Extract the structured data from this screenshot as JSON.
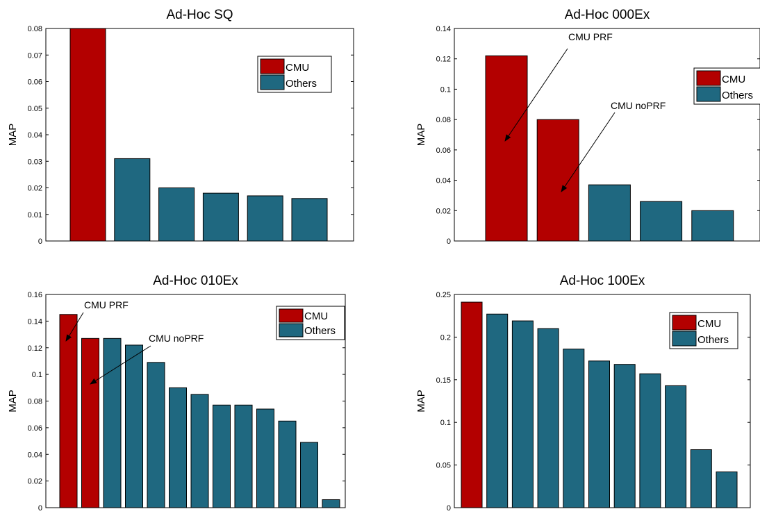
{
  "colors": {
    "cmu": "#b30000",
    "others": "#1f6880"
  },
  "chart_data": [
    {
      "type": "bar",
      "title": "Ad-Hoc SQ",
      "ylabel": "MAP",
      "ylim": [
        0,
        0.08
      ],
      "yticks": [
        "0",
        "0.01",
        "0.02",
        "0.03",
        "0.04",
        "0.05",
        "0.06",
        "0.07",
        "0.08"
      ],
      "series": [
        {
          "name": "CMU",
          "values": [
            0.08,
            null,
            null,
            null,
            null,
            null
          ]
        },
        {
          "name": "Others",
          "values": [
            null,
            0.031,
            0.02,
            0.018,
            0.017,
            0.016
          ]
        }
      ],
      "legend": {
        "position": "top-right",
        "labels": [
          "CMU",
          "Others"
        ]
      },
      "annotations": []
    },
    {
      "type": "bar",
      "title": "Ad-Hoc 000Ex",
      "ylabel": "MAP",
      "ylim": [
        0,
        0.14
      ],
      "yticks": [
        "0",
        "0.02",
        "0.04",
        "0.06",
        "0.08",
        "0.1",
        "0.12",
        "0.14"
      ],
      "series": [
        {
          "name": "CMU",
          "values": [
            0.122,
            0.08,
            null,
            null,
            null
          ]
        },
        {
          "name": "Others",
          "values": [
            null,
            null,
            0.037,
            0.026,
            0.02
          ]
        }
      ],
      "legend": {
        "position": "top-right",
        "labels": [
          "CMU",
          "Others"
        ]
      },
      "annotations": [
        {
          "text": "CMU PRF",
          "bar_index": 0
        },
        {
          "text": "CMU noPRF",
          "bar_index": 1
        }
      ]
    },
    {
      "type": "bar",
      "title": "Ad-Hoc 010Ex",
      "ylabel": "MAP",
      "ylim": [
        0,
        0.16
      ],
      "yticks": [
        "0",
        "0.02",
        "0.04",
        "0.06",
        "0.08",
        "0.1",
        "0.12",
        "0.14",
        "0.16"
      ],
      "series": [
        {
          "name": "CMU",
          "values": [
            0.145,
            0.127,
            null,
            null,
            null,
            null,
            null,
            null,
            null,
            null,
            null,
            null,
            null
          ]
        },
        {
          "name": "Others",
          "values": [
            null,
            null,
            0.127,
            0.122,
            0.109,
            0.09,
            0.085,
            0.077,
            0.077,
            0.074,
            0.065,
            0.049,
            0.006
          ]
        }
      ],
      "legend": {
        "position": "top-right",
        "labels": [
          "CMU",
          "Others"
        ]
      },
      "annotations": [
        {
          "text": "CMU PRF",
          "bar_index": 0
        },
        {
          "text": "CMU noPRF",
          "bar_index": 1
        }
      ]
    },
    {
      "type": "bar",
      "title": "Ad-Hoc 100Ex",
      "ylabel": "MAP",
      "ylim": [
        0,
        0.25
      ],
      "yticks": [
        "0",
        "0.05",
        "0.1",
        "0.15",
        "0.2",
        "0.25"
      ],
      "series": [
        {
          "name": "CMU",
          "values": [
            0.241,
            null,
            null,
            null,
            null,
            null,
            null,
            null,
            null,
            null,
            null
          ]
        },
        {
          "name": "Others",
          "values": [
            null,
            0.227,
            0.219,
            0.21,
            0.186,
            0.172,
            0.168,
            0.157,
            0.143,
            0.068,
            0.042
          ]
        }
      ],
      "legend": {
        "position": "top-right",
        "labels": [
          "CMU",
          "Others"
        ]
      },
      "annotations": []
    }
  ]
}
